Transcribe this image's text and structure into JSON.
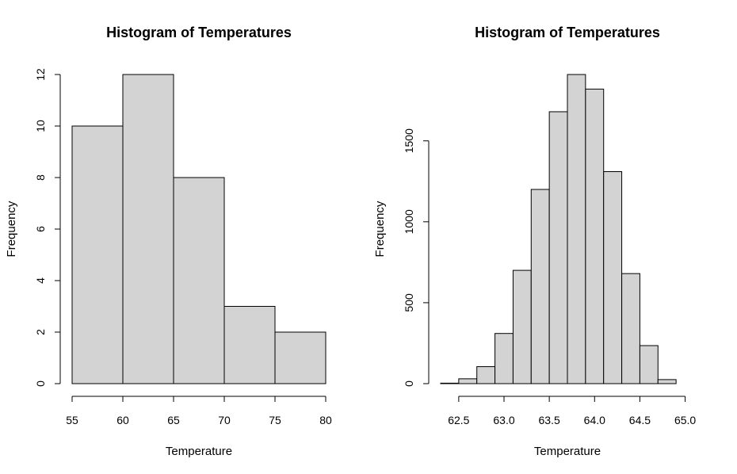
{
  "chart_data": [
    {
      "type": "bar",
      "title": "Histogram of Temperatures",
      "xlabel": "Temperature",
      "ylabel": "Frequency",
      "bins": [
        [
          55,
          60
        ],
        [
          60,
          65
        ],
        [
          65,
          70
        ],
        [
          70,
          75
        ],
        [
          75,
          80
        ]
      ],
      "values": [
        10,
        12,
        8,
        3,
        2
      ],
      "xlim": [
        55,
        80
      ],
      "ylim": [
        0,
        12
      ],
      "x_ticks": [
        "55",
        "60",
        "65",
        "70",
        "75",
        "80"
      ],
      "y_ticks": [
        "0",
        "2",
        "4",
        "6",
        "8",
        "10",
        "12"
      ],
      "grid": false,
      "legend": "none"
    },
    {
      "type": "bar",
      "title": "Histogram of Temperatures",
      "xlabel": "Temperature",
      "ylabel": "Frequency",
      "bins": [
        [
          62.3,
          62.5
        ],
        [
          62.5,
          62.7
        ],
        [
          62.7,
          62.9
        ],
        [
          62.9,
          63.1
        ],
        [
          63.1,
          63.3
        ],
        [
          63.3,
          63.5
        ],
        [
          63.5,
          63.7
        ],
        [
          63.7,
          63.9
        ],
        [
          63.9,
          64.1
        ],
        [
          64.1,
          64.3
        ],
        [
          64.3,
          64.5
        ],
        [
          64.5,
          64.7
        ],
        [
          64.7,
          64.9
        ],
        [
          64.9,
          65.1
        ]
      ],
      "values": [
        3,
        30,
        105,
        310,
        700,
        1200,
        1680,
        1910,
        1820,
        1310,
        680,
        235,
        25,
        0
      ],
      "xlim": [
        62.3,
        65.1
      ],
      "ylim": [
        0,
        1910
      ],
      "x_ticks": [
        "62.5",
        "63.0",
        "63.5",
        "64.0",
        "64.5",
        "65.0"
      ],
      "y_ticks": [
        "0",
        "500",
        "1000",
        "1500"
      ],
      "grid": false,
      "legend": "none"
    }
  ]
}
